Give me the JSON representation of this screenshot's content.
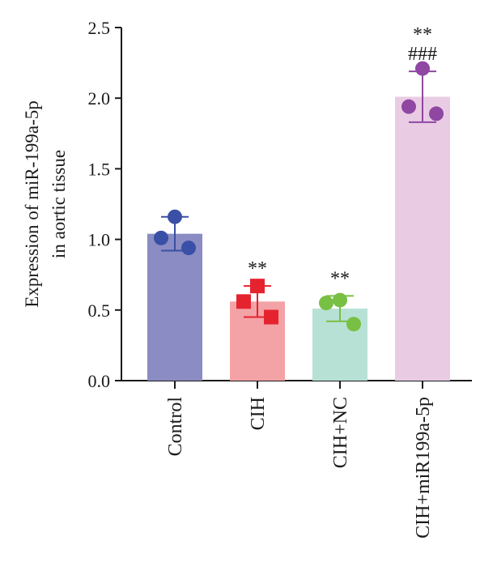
{
  "chart_data": {
    "type": "bar",
    "title": "",
    "xlabel": "",
    "ylabel": [
      "Expression of miR-199a-5p",
      "in aortic tissue"
    ],
    "ylim": [
      0,
      2.5
    ],
    "yticks": [
      "0.0",
      "0.5",
      "1.0",
      "1.5",
      "2.0",
      "2.5"
    ],
    "categories": [
      "Control",
      "CIH",
      "CIH+NC",
      "CIH+miR199a-5p"
    ],
    "values": [
      1.04,
      0.56,
      0.51,
      2.01
    ],
    "errors": [
      0.12,
      0.11,
      0.09,
      0.18
    ],
    "points": [
      [
        1.16,
        1.01,
        0.94
      ],
      [
        0.67,
        0.56,
        0.45
      ],
      [
        0.57,
        0.55,
        0.4
      ],
      [
        2.21,
        1.94,
        1.89
      ]
    ],
    "markers": [
      "circle",
      "square",
      "circle",
      "circle"
    ],
    "bar_colors": [
      "#8a8cc3",
      "#f3a3a5",
      "#b8e1d6",
      "#e9cce4"
    ],
    "point_colors": [
      "#3a4fa6",
      "#e5232f",
      "#78c043",
      "#8f47a2"
    ],
    "significance": [
      [],
      [
        "**"
      ],
      [
        "**"
      ],
      [
        "**",
        "###"
      ]
    ],
    "grid": false
  }
}
